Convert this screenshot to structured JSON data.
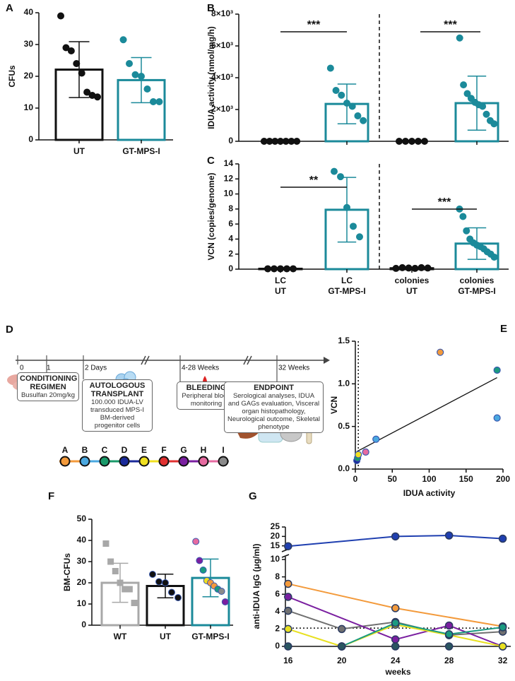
{
  "chart_data": [
    {
      "type": "bar",
      "panel": "A",
      "ylabel": "CFUs",
      "categories": [
        "UT",
        "GT-MPS-I"
      ],
      "values": [
        22.1,
        18.8
      ],
      "errors": [
        8.8,
        7.1
      ],
      "colors": [
        "#111111",
        "#1b8a9a"
      ],
      "points": [
        [
          39,
          29,
          28,
          24,
          21,
          15,
          14,
          13.5
        ],
        [
          31.5,
          24,
          20.5,
          20,
          16,
          12,
          12
        ]
      ],
      "ylim": [
        0,
        40
      ],
      "yticks": [
        0,
        10,
        20,
        30,
        40
      ]
    },
    {
      "type": "bar",
      "panel": "B",
      "ylabel": "IDUA activity (nmol/mg/h)",
      "values": [
        0,
        2350,
        0,
        2400
      ],
      "errors": [
        0,
        1250,
        0,
        1700
      ],
      "colors": [
        "#111111",
        "#1b8a9a",
        "#111111",
        "#1b8a9a"
      ],
      "points": [
        [
          0,
          0,
          0,
          0,
          0,
          0,
          0
        ],
        [
          4600,
          3200,
          2900,
          2400,
          2200,
          1600,
          1300
        ],
        [
          0,
          0,
          0,
          0,
          0
        ],
        [
          6500,
          3550,
          3000,
          2700,
          2450,
          2300,
          2200,
          1700,
          1300,
          1100
        ]
      ],
      "annotations": [
        "***",
        "***"
      ],
      "ylim": [
        0,
        8000
      ],
      "yticks": [
        0,
        {
          "value": 2000,
          "label": "2×10³"
        },
        {
          "value": 4000,
          "label": "4×10³"
        },
        {
          "value": 6000,
          "label": "6×10³"
        },
        {
          "value": 8000,
          "label": "8×10³"
        }
      ]
    },
    {
      "type": "bar",
      "panel": "C",
      "ylabel": "VCN (copies/genome)",
      "categories": [
        [
          "LC",
          "UT"
        ],
        [
          "LC",
          "GT-MPS-I"
        ],
        [
          "colonies",
          "UT"
        ],
        [
          "colonies",
          "GT-MPS-I"
        ]
      ],
      "values": [
        0.05,
        7.9,
        0.12,
        3.4
      ],
      "errors": [
        0,
        4.3,
        0.08,
        2.1
      ],
      "colors": [
        "#111111",
        "#1b8a9a",
        "#111111",
        "#1b8a9a"
      ],
      "points": [
        [
          0.05,
          0.05,
          0.05,
          0.05,
          0.05
        ],
        [
          13,
          12.3,
          8.2,
          5.7,
          4.3
        ],
        [
          0.1,
          0.2,
          0.15,
          0.1,
          0.2,
          0.15
        ],
        [
          8,
          7,
          5.1,
          4,
          3.5,
          3.2,
          3,
          2.7,
          2.3,
          2,
          1.6
        ]
      ],
      "annotations": [
        "**",
        "***"
      ],
      "ylim": [
        0,
        14
      ],
      "yticks": [
        0,
        2,
        4,
        6,
        8,
        10,
        12,
        14
      ]
    },
    {
      "type": "scatter",
      "panel": "E",
      "xlabel": "IDUA activity",
      "ylabel": "VCN",
      "x": [
        2,
        3,
        4,
        14,
        28,
        115,
        192,
        192
      ],
      "y": [
        0.1,
        0.13,
        0.17,
        0.2,
        0.35,
        1.37,
        1.16,
        0.6
      ],
      "colors": [
        "#1a2a9a",
        "#1a9a6a",
        "#f0e020",
        "#e66aa0",
        "#4aa8e0",
        "#f39a3b",
        "#1a9a80",
        "#4aa8e0"
      ],
      "vline": 4,
      "xlim": [
        0,
        200
      ],
      "xticks": [
        0,
        50,
        100,
        150,
        200
      ],
      "ylim": [
        0,
        1.5
      ],
      "yticks": [
        {
          "value": 0,
          "label": "0.0"
        },
        0.5,
        {
          "value": 1,
          "label": "1.0"
        },
        1.5
      ]
    },
    {
      "type": "bar",
      "panel": "F",
      "ylabel": "BM-CFUs",
      "categories": [
        "WT",
        "UT",
        "GT-MPS-I"
      ],
      "values": [
        20,
        18.5,
        22.3
      ],
      "errors": [
        9.2,
        5.6,
        8.9
      ],
      "colors": [
        "#a8a8a8",
        "#111111",
        "#1b8a9a"
      ],
      "markers": [
        "square",
        "circle",
        "circle"
      ],
      "points": [
        [
          38.5,
          30,
          25.5,
          20,
          17,
          17,
          10.5
        ],
        [
          24,
          20.5,
          20,
          15.5,
          13
        ],
        [
          39.5,
          30.5,
          26,
          21,
          20,
          18.5,
          17,
          16,
          11
        ]
      ],
      "point_colors": [
        [
          "#a8a8a8",
          "#a8a8a8",
          "#a8a8a8",
          "#a8a8a8",
          "#a8a8a8",
          "#a8a8a8",
          "#a8a8a8"
        ],
        [
          "#111111",
          "#111111",
          "#111111",
          "#111111",
          "#111111"
        ],
        [
          "#e66aa0",
          "#7a1fa0",
          "#1a9a80",
          "#f0e020",
          "#f39a3b",
          "#f39a3b",
          "#1a9a80",
          "#8a8a8a",
          "#7a1fa0"
        ]
      ],
      "ylim": [
        0,
        50
      ],
      "yticks": [
        0,
        10,
        20,
        30,
        40,
        50
      ]
    },
    {
      "type": "line",
      "panel": "G",
      "ylabel": "anti-IDUA IgG (μg/ml)",
      "xlabel": "weeks",
      "xlim": [
        15.8,
        32.6
      ],
      "xticks": [
        16,
        20,
        24,
        28,
        32
      ],
      "ylim": [
        0,
        10
      ],
      "yticks": [
        0,
        2,
        4,
        6,
        8,
        10
      ],
      "ylim_upper": [
        13,
        25
      ],
      "yticks_upper": [
        15,
        20,
        25
      ],
      "hline": 2.1,
      "series": [
        {
          "color": "#1f3fb0",
          "x": [
            16,
            24,
            28,
            32
          ],
          "values": [
            14.8,
            20,
            20.5,
            18.8
          ],
          "line": true
        },
        {
          "color": "#f39a3b",
          "x": [
            16,
            24,
            32
          ],
          "values": [
            7.2,
            4.4,
            2.3
          ],
          "line": true
        },
        {
          "color": "#707070",
          "x": [
            16,
            20,
            24,
            28,
            32
          ],
          "values": [
            4.1,
            2.0,
            2.8,
            1.3,
            1.7
          ],
          "line": true
        },
        {
          "color": "#7a1fa0",
          "x": [
            16,
            24,
            28,
            32
          ],
          "values": [
            5.7,
            0.8,
            2.4,
            0
          ],
          "line": true
        },
        {
          "color": "#e8e020",
          "x": [
            16,
            20,
            24,
            28,
            32
          ],
          "values": [
            2.0,
            0,
            2.5,
            1.3,
            0
          ],
          "line": true
        },
        {
          "color": "#1a9a80",
          "x": [
            20,
            24,
            28,
            32
          ],
          "values": [
            0,
            2.7,
            1.4,
            2.2
          ],
          "line": true
        },
        {
          "color": "#2a5560",
          "x": [
            16,
            20,
            24,
            28
          ],
          "values": [
            0,
            0,
            0,
            0
          ],
          "line": false
        }
      ]
    }
  ],
  "timeline": {
    "panel": "D",
    "ticks": [
      "0",
      "1",
      "2 Days",
      "4-28 Weeks",
      "32 Weeks"
    ],
    "steps": [
      {
        "title": "CONDITIONING REGIMEN",
        "text": "Busulfan 20mg/kg"
      },
      {
        "title": "AUTOLOGOUS TRANSPLANT",
        "text": "100.000 IDUA-LV transduced MPS-I BM-derived progenitor cells"
      },
      {
        "title": "BLEEDING",
        "text": "Peripheral blood monitoring"
      },
      {
        "title": "ENDPOINT",
        "text": "Serological analyses, IDUA and GAGs evaluation, Visceral organ histopathology, Neurological outcome, Skeletal phenotype"
      }
    ],
    "groups": [
      {
        "label": "A",
        "color": "#f39a3b"
      },
      {
        "label": "B",
        "color": "#4aa8e0"
      },
      {
        "label": "C",
        "color": "#1a9a6a"
      },
      {
        "label": "D",
        "color": "#1a2a9a"
      },
      {
        "label": "E",
        "color": "#f0e020"
      },
      {
        "label": "F",
        "color": "#e03030"
      },
      {
        "label": "G",
        "color": "#7a1fa0"
      },
      {
        "label": "H",
        "color": "#e66aa0"
      },
      {
        "label": "I",
        "color": "#8a8a8a"
      }
    ]
  }
}
